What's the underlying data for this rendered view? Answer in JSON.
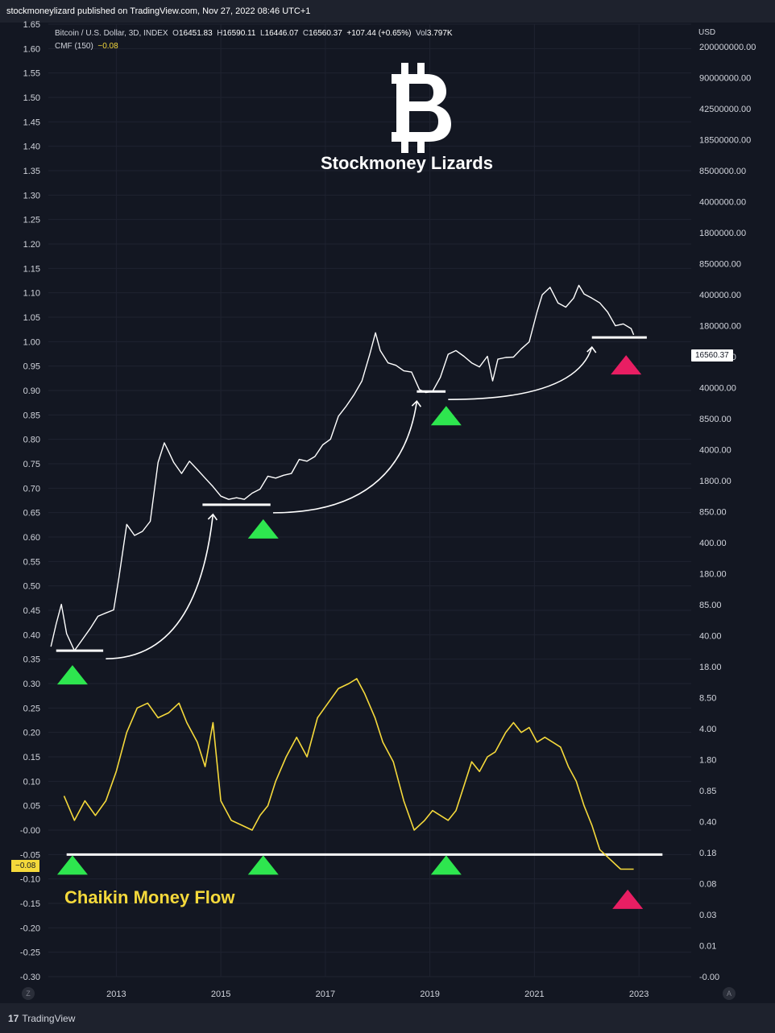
{
  "header": {
    "publisher_line": "stockmoneylizard published on TradingView.com, Nov 27, 2022 08:46 UTC+1"
  },
  "legend": {
    "symbol": "Bitcoin / U.S. Dollar, 3D, INDEX",
    "o_label": "O",
    "o": "16451.83",
    "h_label": "H",
    "h": "16590.11",
    "l_label": "L",
    "l": "16446.07",
    "c_label": "C",
    "c": "16560.37",
    "change": "+107.44 (+0.65%)",
    "vol_label": "Vol",
    "vol": "3.797K",
    "cmf_label": "CMF (150)",
    "cmf_value": "−0.08"
  },
  "branding": {
    "name": "Stockmoney Lizards",
    "cmf_title": "Chaikin Money Flow"
  },
  "footer": {
    "logo_mark": "17",
    "logo_text": "TradingView",
    "left_corner": "Z",
    "right_corner": "A"
  },
  "colors": {
    "background": "#131722",
    "price_line": "#ffffff",
    "cmf_line": "#f5d93b",
    "up_marker": "#2ee64f",
    "down_marker": "#e91e63"
  },
  "chart_data": {
    "type": "line",
    "x_ticks": [
      "2013",
      "2015",
      "2017",
      "2019",
      "2021",
      "2023"
    ],
    "x_range": [
      2011.7,
      2024.0
    ],
    "left_axis": {
      "label": "",
      "ticks": [
        "1.65",
        "1.60",
        "1.55",
        "1.50",
        "1.45",
        "1.40",
        "1.35",
        "1.30",
        "1.25",
        "1.20",
        "1.15",
        "1.10",
        "1.05",
        "1.00",
        "0.95",
        "0.90",
        "0.85",
        "0.80",
        "0.75",
        "0.70",
        "0.65",
        "0.60",
        "0.55",
        "0.50",
        "0.45",
        "0.40",
        "0.35",
        "0.30",
        "0.25",
        "0.20",
        "0.15",
        "0.10",
        "0.05",
        "-0.00",
        "-0.05",
        "-0.10",
        "-0.15",
        "-0.20",
        "-0.25",
        "-0.30"
      ],
      "range": [
        -0.3,
        1.65
      ]
    },
    "right_axis": {
      "label": "USD",
      "scale": "log",
      "ticks": [
        "200000000.00",
        "90000000.00",
        "42500000.00",
        "18500000.00",
        "8500000.00",
        "4000000.00",
        "1800000.00",
        "850000.00",
        "400000.00",
        "180000.00",
        "85000.00",
        "40000.00",
        "8500.00",
        "4000.00",
        "1800.00",
        "850.00",
        "400.00",
        "180.00",
        "85.00",
        "40.00",
        "18.00",
        "8.50",
        "4.00",
        "1.80",
        "0.85",
        "0.40",
        "0.18",
        "0.08",
        "0.03",
        "0.01",
        "-0.00"
      ]
    },
    "series": [
      {
        "name": "Bitcoin / U.S. Dollar",
        "axis": "right",
        "x": [
          2011.75,
          2011.85,
          2011.95,
          2012.05,
          2012.2,
          2012.35,
          2012.5,
          2012.65,
          2012.8,
          2012.95,
          2013.05,
          2013.2,
          2013.35,
          2013.5,
          2013.65,
          2013.8,
          2013.92,
          2014.0,
          2014.1,
          2014.25,
          2014.4,
          2014.55,
          2014.7,
          2014.85,
          2015.0,
          2015.15,
          2015.3,
          2015.45,
          2015.6,
          2015.75,
          2015.9,
          2016.05,
          2016.2,
          2016.35,
          2016.5,
          2016.65,
          2016.8,
          2016.95,
          2017.1,
          2017.25,
          2017.4,
          2017.55,
          2017.7,
          2017.85,
          2017.96,
          2018.05,
          2018.2,
          2018.35,
          2018.5,
          2018.65,
          2018.8,
          2018.92,
          2019.05,
          2019.2,
          2019.35,
          2019.5,
          2019.65,
          2019.8,
          2019.95,
          2020.1,
          2020.2,
          2020.3,
          2020.45,
          2020.6,
          2020.75,
          2020.9,
          2021.05,
          2021.15,
          2021.3,
          2021.45,
          2021.6,
          2021.75,
          2021.85,
          2021.95,
          2022.1,
          2022.25,
          2022.4,
          2022.55,
          2022.7,
          2022.85,
          2022.9
        ],
        "values": [
          5,
          9,
          15,
          7,
          4.5,
          6,
          8,
          11,
          12,
          13,
          30,
          120,
          90,
          100,
          130,
          600,
          1000,
          800,
          600,
          450,
          620,
          500,
          400,
          320,
          250,
          230,
          240,
          230,
          270,
          300,
          420,
          400,
          430,
          450,
          650,
          620,
          700,
          950,
          1100,
          2000,
          2600,
          3500,
          5000,
          10000,
          17500,
          11000,
          8000,
          7500,
          6500,
          6300,
          4000,
          3700,
          3800,
          5500,
          10000,
          11000,
          9500,
          8000,
          7200,
          9500,
          5000,
          8800,
          9200,
          9300,
          11500,
          13800,
          30000,
          47000,
          57000,
          38000,
          34000,
          43000,
          60000,
          48000,
          43000,
          38000,
          30000,
          21000,
          22000,
          19500,
          16560
        ]
      },
      {
        "name": "CMF (150)",
        "axis": "left",
        "x": [
          2012.0,
          2012.2,
          2012.4,
          2012.6,
          2012.8,
          2013.0,
          2013.2,
          2013.4,
          2013.6,
          2013.8,
          2014.0,
          2014.2,
          2014.35,
          2014.55,
          2014.7,
          2014.85,
          2015.0,
          2015.2,
          2015.4,
          2015.6,
          2015.75,
          2015.9,
          2016.05,
          2016.25,
          2016.45,
          2016.65,
          2016.85,
          2017.05,
          2017.25,
          2017.45,
          2017.6,
          2017.75,
          2017.95,
          2018.1,
          2018.3,
          2018.5,
          2018.7,
          2018.9,
          2019.05,
          2019.2,
          2019.35,
          2019.5,
          2019.65,
          2019.8,
          2019.95,
          2020.1,
          2020.25,
          2020.45,
          2020.6,
          2020.75,
          2020.9,
          2021.05,
          2021.2,
          2021.35,
          2021.5,
          2021.65,
          2021.8,
          2021.95,
          2022.1,
          2022.25,
          2022.35,
          2022.45,
          2022.55,
          2022.65,
          2022.75,
          2022.85,
          2022.9
        ],
        "values": [
          0.07,
          0.02,
          0.06,
          0.03,
          0.06,
          0.12,
          0.2,
          0.25,
          0.26,
          0.23,
          0.24,
          0.26,
          0.22,
          0.18,
          0.13,
          0.22,
          0.06,
          0.02,
          0.01,
          0.0,
          0.03,
          0.05,
          0.1,
          0.15,
          0.19,
          0.15,
          0.23,
          0.26,
          0.29,
          0.3,
          0.31,
          0.28,
          0.23,
          0.18,
          0.14,
          0.06,
          0.0,
          0.02,
          0.04,
          0.03,
          0.02,
          0.04,
          0.09,
          0.14,
          0.12,
          0.15,
          0.16,
          0.2,
          0.22,
          0.2,
          0.21,
          0.18,
          0.19,
          0.18,
          0.17,
          0.13,
          0.1,
          0.05,
          0.01,
          -0.04,
          -0.05,
          -0.06,
          -0.07,
          -0.08,
          -0.08,
          -0.08,
          -0.08
        ]
      }
    ],
    "up_markers_price": [
      2012.1,
      2015.75,
      2019.25
    ],
    "down_marker_price": [
      2022.6
    ],
    "up_markers_cmf": [
      2012.1,
      2015.75,
      2019.25
    ],
    "down_marker_cmf": [
      2022.6
    ],
    "support_levels_price": [
      [
        2011.85,
        2012.75,
        4.5
      ],
      [
        2014.65,
        2015.95,
        200
      ],
      [
        2018.75,
        2019.3,
        3800
      ],
      [
        2022.1,
        2023.15,
        15500
      ]
    ],
    "arrows": [
      [
        2012.8,
        2014.85
      ],
      [
        2016.0,
        2018.75
      ],
      [
        2019.35,
        2022.1
      ]
    ],
    "cmf_baseline": -0.05,
    "last_price": "16560.37",
    "last_cmf": "−0.08",
    "grid": true
  }
}
